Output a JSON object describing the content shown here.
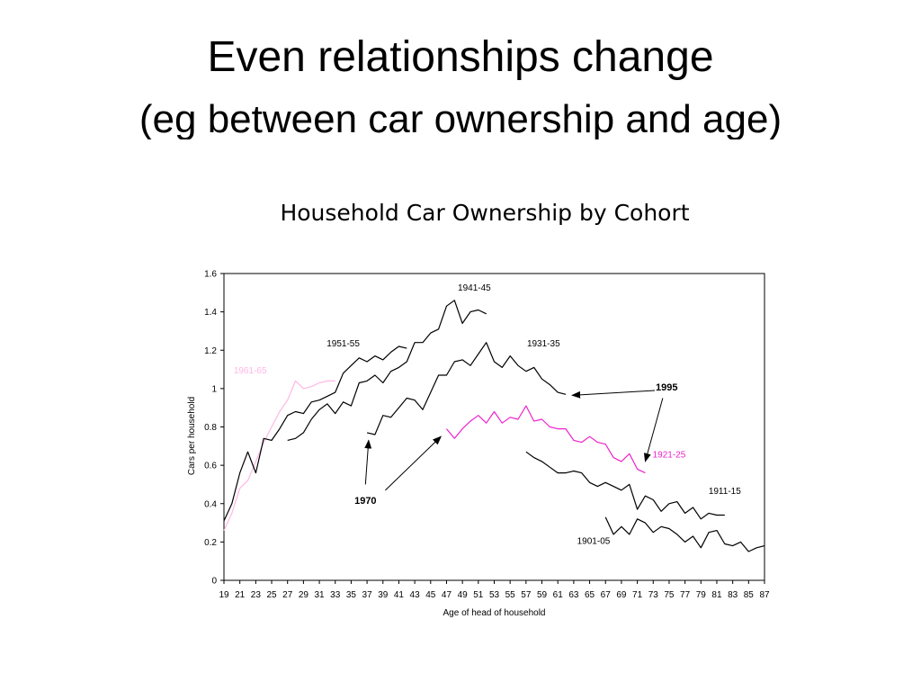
{
  "slide": {
    "title_line1": "Even relationships change",
    "title_line2": "(eg between car ownership and age)"
  },
  "colors": {
    "pink_light": "#ffb7e4",
    "magenta": "#ee22cc",
    "black": "#000000"
  },
  "chart_data": {
    "type": "line",
    "title": "Household Car Ownership by Cohort",
    "xlabel": "Age of head of household",
    "ylabel": "Cars per household",
    "xlim": [
      19,
      87
    ],
    "ylim": [
      0,
      1.6
    ],
    "xticks": [
      19,
      21,
      23,
      25,
      27,
      29,
      31,
      33,
      35,
      37,
      39,
      41,
      43,
      45,
      47,
      49,
      51,
      53,
      55,
      57,
      59,
      61,
      63,
      65,
      67,
      69,
      71,
      73,
      75,
      77,
      79,
      81,
      83,
      85,
      87
    ],
    "yticks": [
      0,
      0.2,
      0.4,
      0.6,
      0.8,
      1,
      1.2,
      1.4,
      1.6
    ],
    "ytick_labels": [
      "0",
      "0.2",
      "0.4",
      "0.6",
      "0.8",
      "1",
      "1.2",
      "1.4",
      "1.6"
    ],
    "grid": false,
    "series": [
      {
        "name": "1961-65",
        "color": "pink_light",
        "label_at": [
          22.3,
          1.08
        ],
        "x": [
          19,
          20,
          21,
          22,
          23,
          24,
          25,
          26,
          27,
          28,
          29,
          30,
          31,
          32,
          33
        ],
        "y": [
          0.26,
          0.35,
          0.48,
          0.52,
          0.62,
          0.72,
          0.8,
          0.88,
          0.94,
          1.04,
          1.0,
          1.01,
          1.03,
          1.04,
          1.04
        ]
      },
      {
        "name": "1951-55",
        "color": "black",
        "label_at": [
          34,
          1.22
        ],
        "x": [
          19,
          20,
          21,
          22,
          23,
          24,
          25,
          26,
          27,
          28,
          29,
          30,
          31,
          32,
          33,
          34,
          35,
          36,
          37,
          38,
          39,
          40,
          41,
          42
        ],
        "y": [
          0.31,
          0.4,
          0.56,
          0.67,
          0.56,
          0.74,
          0.73,
          0.79,
          0.86,
          0.88,
          0.87,
          0.93,
          0.94,
          0.96,
          0.98,
          1.08,
          1.12,
          1.16,
          1.14,
          1.17,
          1.15,
          1.19,
          1.22,
          1.21
        ]
      },
      {
        "name": "1941-45",
        "color": "black",
        "label_at": [
          50.5,
          1.51
        ],
        "x": [
          27,
          28,
          29,
          30,
          31,
          32,
          33,
          34,
          35,
          36,
          37,
          38,
          39,
          40,
          41,
          42,
          43,
          44,
          45,
          46,
          47,
          48,
          49,
          50,
          51,
          52
        ],
        "y": [
          0.73,
          0.74,
          0.77,
          0.84,
          0.89,
          0.92,
          0.87,
          0.93,
          0.91,
          1.03,
          1.04,
          1.07,
          1.03,
          1.09,
          1.11,
          1.14,
          1.24,
          1.24,
          1.29,
          1.31,
          1.43,
          1.46,
          1.34,
          1.4,
          1.41,
          1.39
        ]
      },
      {
        "name": "1931-35",
        "color": "black",
        "label_at": [
          59.2,
          1.22
        ],
        "x": [
          37,
          38,
          39,
          40,
          41,
          42,
          43,
          44,
          45,
          46,
          47,
          48,
          49,
          50,
          51,
          52,
          53,
          54,
          55,
          56,
          57,
          58,
          59,
          60,
          61,
          62
        ],
        "y": [
          0.77,
          0.76,
          0.86,
          0.85,
          0.9,
          0.95,
          0.94,
          0.89,
          0.98,
          1.07,
          1.07,
          1.14,
          1.15,
          1.12,
          1.18,
          1.24,
          1.14,
          1.11,
          1.17,
          1.12,
          1.09,
          1.11,
          1.05,
          1.02,
          0.98,
          0.97
        ]
      },
      {
        "name": "1921-25",
        "color": "magenta",
        "label_at": [
          75,
          0.64
        ],
        "x": [
          47,
          48,
          49,
          50,
          51,
          52,
          53,
          54,
          55,
          56,
          57,
          58,
          59,
          60,
          61,
          62,
          63,
          64,
          65,
          66,
          67,
          68,
          69,
          70,
          71,
          72
        ],
        "y": [
          0.79,
          0.74,
          0.79,
          0.83,
          0.86,
          0.82,
          0.88,
          0.82,
          0.85,
          0.84,
          0.91,
          0.83,
          0.84,
          0.8,
          0.79,
          0.79,
          0.73,
          0.72,
          0.75,
          0.72,
          0.71,
          0.64,
          0.62,
          0.66,
          0.58,
          0.56
        ]
      },
      {
        "name": "1911-15",
        "color": "black",
        "label_at": [
          82,
          0.45
        ],
        "x": [
          57,
          58,
          59,
          60,
          61,
          62,
          63,
          64,
          65,
          66,
          67,
          68,
          69,
          70,
          71,
          72,
          73,
          74,
          75,
          76,
          77,
          78,
          79,
          80,
          81,
          82
        ],
        "y": [
          0.67,
          0.64,
          0.62,
          0.59,
          0.56,
          0.56,
          0.57,
          0.56,
          0.51,
          0.49,
          0.51,
          0.49,
          0.47,
          0.5,
          0.37,
          0.44,
          0.42,
          0.36,
          0.4,
          0.41,
          0.35,
          0.38,
          0.32,
          0.35,
          0.34,
          0.34
        ]
      },
      {
        "name": "1901-05",
        "color": "black",
        "label_at": [
          65.5,
          0.19
        ],
        "x": [
          67,
          68,
          69,
          70,
          71,
          72,
          73,
          74,
          75,
          76,
          77,
          78,
          79,
          80,
          81,
          82,
          83,
          84,
          85,
          86,
          87
        ],
        "y": [
          0.33,
          0.24,
          0.28,
          0.24,
          0.32,
          0.3,
          0.25,
          0.28,
          0.27,
          0.24,
          0.2,
          0.23,
          0.17,
          0.25,
          0.26,
          0.19,
          0.18,
          0.2,
          0.15,
          0.17,
          0.18
        ]
      }
    ],
    "annotations": [
      {
        "text": "1995",
        "label_at": [
          74.7,
          0.99
        ],
        "arrows": [
          {
            "from": [
              73.2,
              0.99
            ],
            "to": [
              62.8,
              0.965
            ]
          },
          {
            "from": [
              74.2,
              0.95
            ],
            "to": [
              72.0,
              0.62
            ]
          }
        ]
      },
      {
        "text": "1970",
        "label_at": [
          36.8,
          0.4
        ],
        "arrows": [
          {
            "from": [
              36.8,
              0.5
            ],
            "to": [
              37.2,
              0.73
            ]
          },
          {
            "from": [
              39.3,
              0.47
            ],
            "to": [
              46.3,
              0.75
            ]
          }
        ]
      }
    ]
  }
}
